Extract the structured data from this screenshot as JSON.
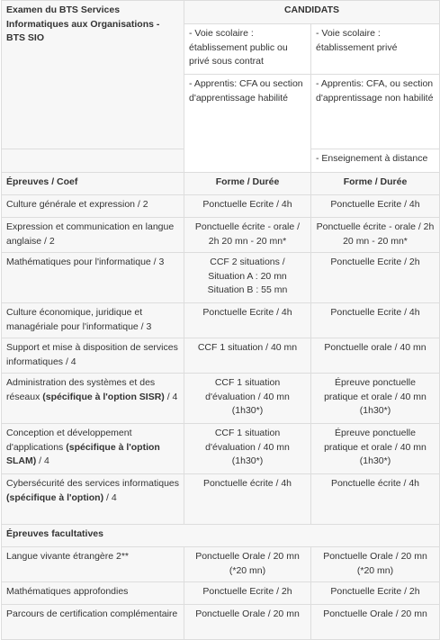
{
  "header": {
    "exam_title": "Examen du BTS Services Informatiques aux Organisations - BTS SIO",
    "candidats_label": "CANDIDATS",
    "voie_scolaire_public": "- Voie scolaire : établissement public ou privé sous contrat",
    "voie_scolaire_prive": "- Voie scolaire : établissement privé",
    "apprentis_cfa_habilite": "- Apprentis: CFA ou section d'apprentissage habilité",
    "apprentis_cfa_non_habilite": "- Apprentis: CFA, ou section d'apprentissage non habilité",
    "enseignement_distance": "- Enseignement à distance"
  },
  "columns": {
    "epreuves": "Épreuves / Coef",
    "forme_duree_1": "Forme / Durée",
    "forme_duree_2": "Forme / Durée"
  },
  "rows": [
    {
      "epreuve": "Culture générale et expression / 2",
      "forme1": "Ponctuelle Ecrite / 4h",
      "forme2": "Ponctuelle Ecrite / 4h"
    },
    {
      "epreuve": "Expression et communication en langue anglaise / 2",
      "forme1": "Ponctuelle écrite - orale / 2h 20 mn - 20 mn*",
      "forme2": "Ponctuelle écrite - orale / 2h 20 mn - 20 mn*"
    },
    {
      "epreuve": "Mathématiques pour l'informatique / 3",
      "forme1_l1": "CCF 2 situations /",
      "forme1_l2": "Situation A : 20 mn",
      "forme1_l3": "Situation B : 55 mn",
      "forme2": "Ponctuelle Ecrite / 2h"
    },
    {
      "epreuve": "Culture économique, juridique et managériale pour l'informatique / 3",
      "forme1": "Ponctuelle Ecrite / 4h",
      "forme2": "Ponctuelle Ecrite / 4h"
    },
    {
      "epreuve": "Support et mise à disposition de services informatiques / 4",
      "forme1": "CCF 1 situation / 40 mn",
      "forme2": "Ponctuelle orale / 40 mn"
    },
    {
      "epreuve_pre": "Administration des systèmes et des réseaux",
      "epreuve_bold": "(spécifique à l'option SISR)",
      "epreuve_post": "/ 4",
      "forme1_l1": "CCF 1 situation",
      "forme1_l2": "d'évaluation / 40 mn",
      "forme1_l3": "(1h30*)",
      "forme2_l1": "Épreuve ponctuelle",
      "forme2_l2": "pratique et orale / 40 mn",
      "forme2_l3": "(1h30*)"
    },
    {
      "epreuve_pre": "Conception et développement d'applications",
      "epreuve_bold": "(spécifique à l'option SLAM)",
      "epreuve_post": "/ 4",
      "forme1_l1": "CCF 1 situation",
      "forme1_l2": "d'évaluation / 40 mn",
      "forme1_l3": "(1h30*)",
      "forme2_l1": "Épreuve ponctuelle",
      "forme2_l2": "pratique et orale / 40 mn",
      "forme2_l3": "(1h30*)"
    },
    {
      "epreuve_pre": "Cybersécurité des services informatiques",
      "epreuve_bold": "(spécifique à l'option)",
      "epreuve_post": "/ 4",
      "forme1": "Ponctuelle écrite / 4h",
      "forme2": "Ponctuelle écrite / 4h"
    }
  ],
  "facultatives_label": "Épreuves facultatives",
  "facultatives": [
    {
      "epreuve": "Langue vivante étrangère 2**",
      "forme1_l1": "Ponctuelle Orale / 20 mn",
      "forme1_l2": "(*20 mn)",
      "forme2_l1": "Ponctuelle Orale / 20 mn",
      "forme2_l2": "(*20 mn)"
    },
    {
      "epreuve": "Mathématiques approfondies",
      "forme1": "Ponctuelle Ecrite / 2h",
      "forme2": "Ponctuelle Ecrite / 2h"
    },
    {
      "epreuve": "Parcours de certification complémentaire",
      "forme1": "Ponctuelle Orale / 20 mn",
      "forme2": "Ponctuelle Orale / 20 mn"
    }
  ]
}
